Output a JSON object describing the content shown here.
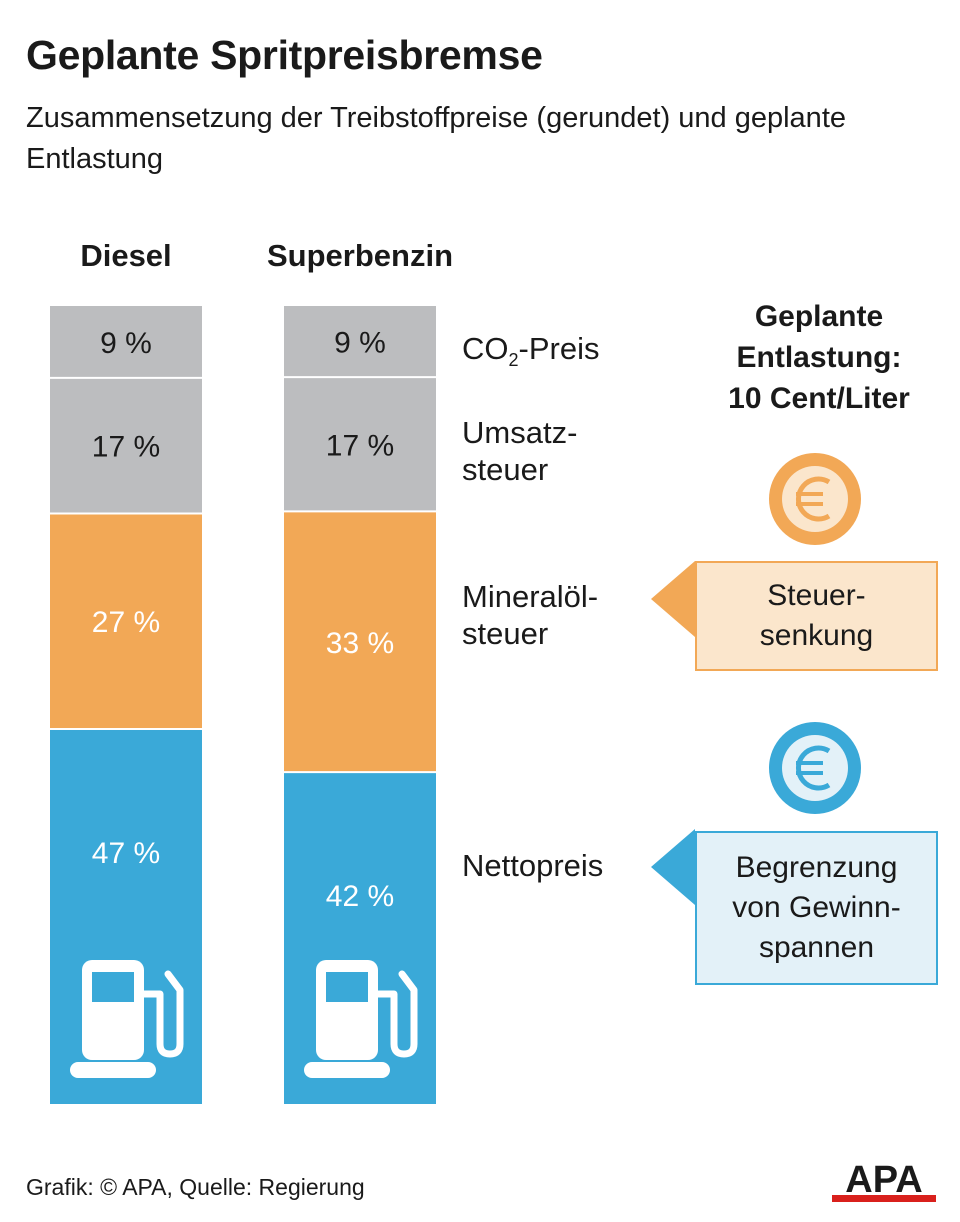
{
  "title": "Geplante Spritpreisbremse",
  "subtitle": "Zusammensetzung der Treibstoffpreise (gerundet) und geplante Entlastung",
  "chart_data": {
    "type": "bar",
    "stacked": true,
    "unit": "%",
    "categories": [
      "Diesel",
      "Superbenzin"
    ],
    "series": [
      {
        "name": "CO₂-Preis",
        "values": [
          9,
          9
        ],
        "color": "#bcbdbf",
        "label_color": "#1a1a1a"
      },
      {
        "name": "Umsatzsteuer",
        "values": [
          17,
          17
        ],
        "color": "#bcbdbf",
        "label_color": "#1a1a1a"
      },
      {
        "name": "Mineralölsteuer",
        "values": [
          27,
          33
        ],
        "color": "#f2a856",
        "label_color": "#ffffff"
      },
      {
        "name": "Nettopreis",
        "values": [
          47,
          42
        ],
        "color": "#3aa9d8",
        "label_color": "#ffffff"
      }
    ],
    "value_labels": {
      "Diesel": [
        "9 %",
        "17 %",
        "27 %",
        "47 %"
      ],
      "Superbenzin": [
        "9 %",
        "17 %",
        "33 %",
        "42 %"
      ]
    }
  },
  "segment_labels": {
    "co2_prefix": "CO",
    "co2_sub": "2",
    "co2_suffix": "-Preis",
    "umsatz_line1": "Umsatz-",
    "umsatz_line2": "steuer",
    "mineral_line1": "Mineralöl-",
    "mineral_line2": "steuer",
    "netto": "Nettopreis"
  },
  "relief": {
    "title_line1": "Geplante",
    "title_line2": "Entlastung:",
    "title_line3": "10 Cent/Liter",
    "tax_line1": "Steuer-",
    "tax_line2": "senkung",
    "margin_line1": "Begrenzung",
    "margin_line2": "von Gewinn-",
    "margin_line3": "spannen"
  },
  "footer": "Grafik: © APA, Quelle: Regierung",
  "logo_text": "APA",
  "icons": {
    "coin": "euro-coin-icon",
    "pump": "fuel-pump-icon"
  },
  "colors": {
    "gray": "#bcbdbf",
    "orange": "#f2a856",
    "blue": "#3aa9d8",
    "logo_red": "#d9201c"
  }
}
